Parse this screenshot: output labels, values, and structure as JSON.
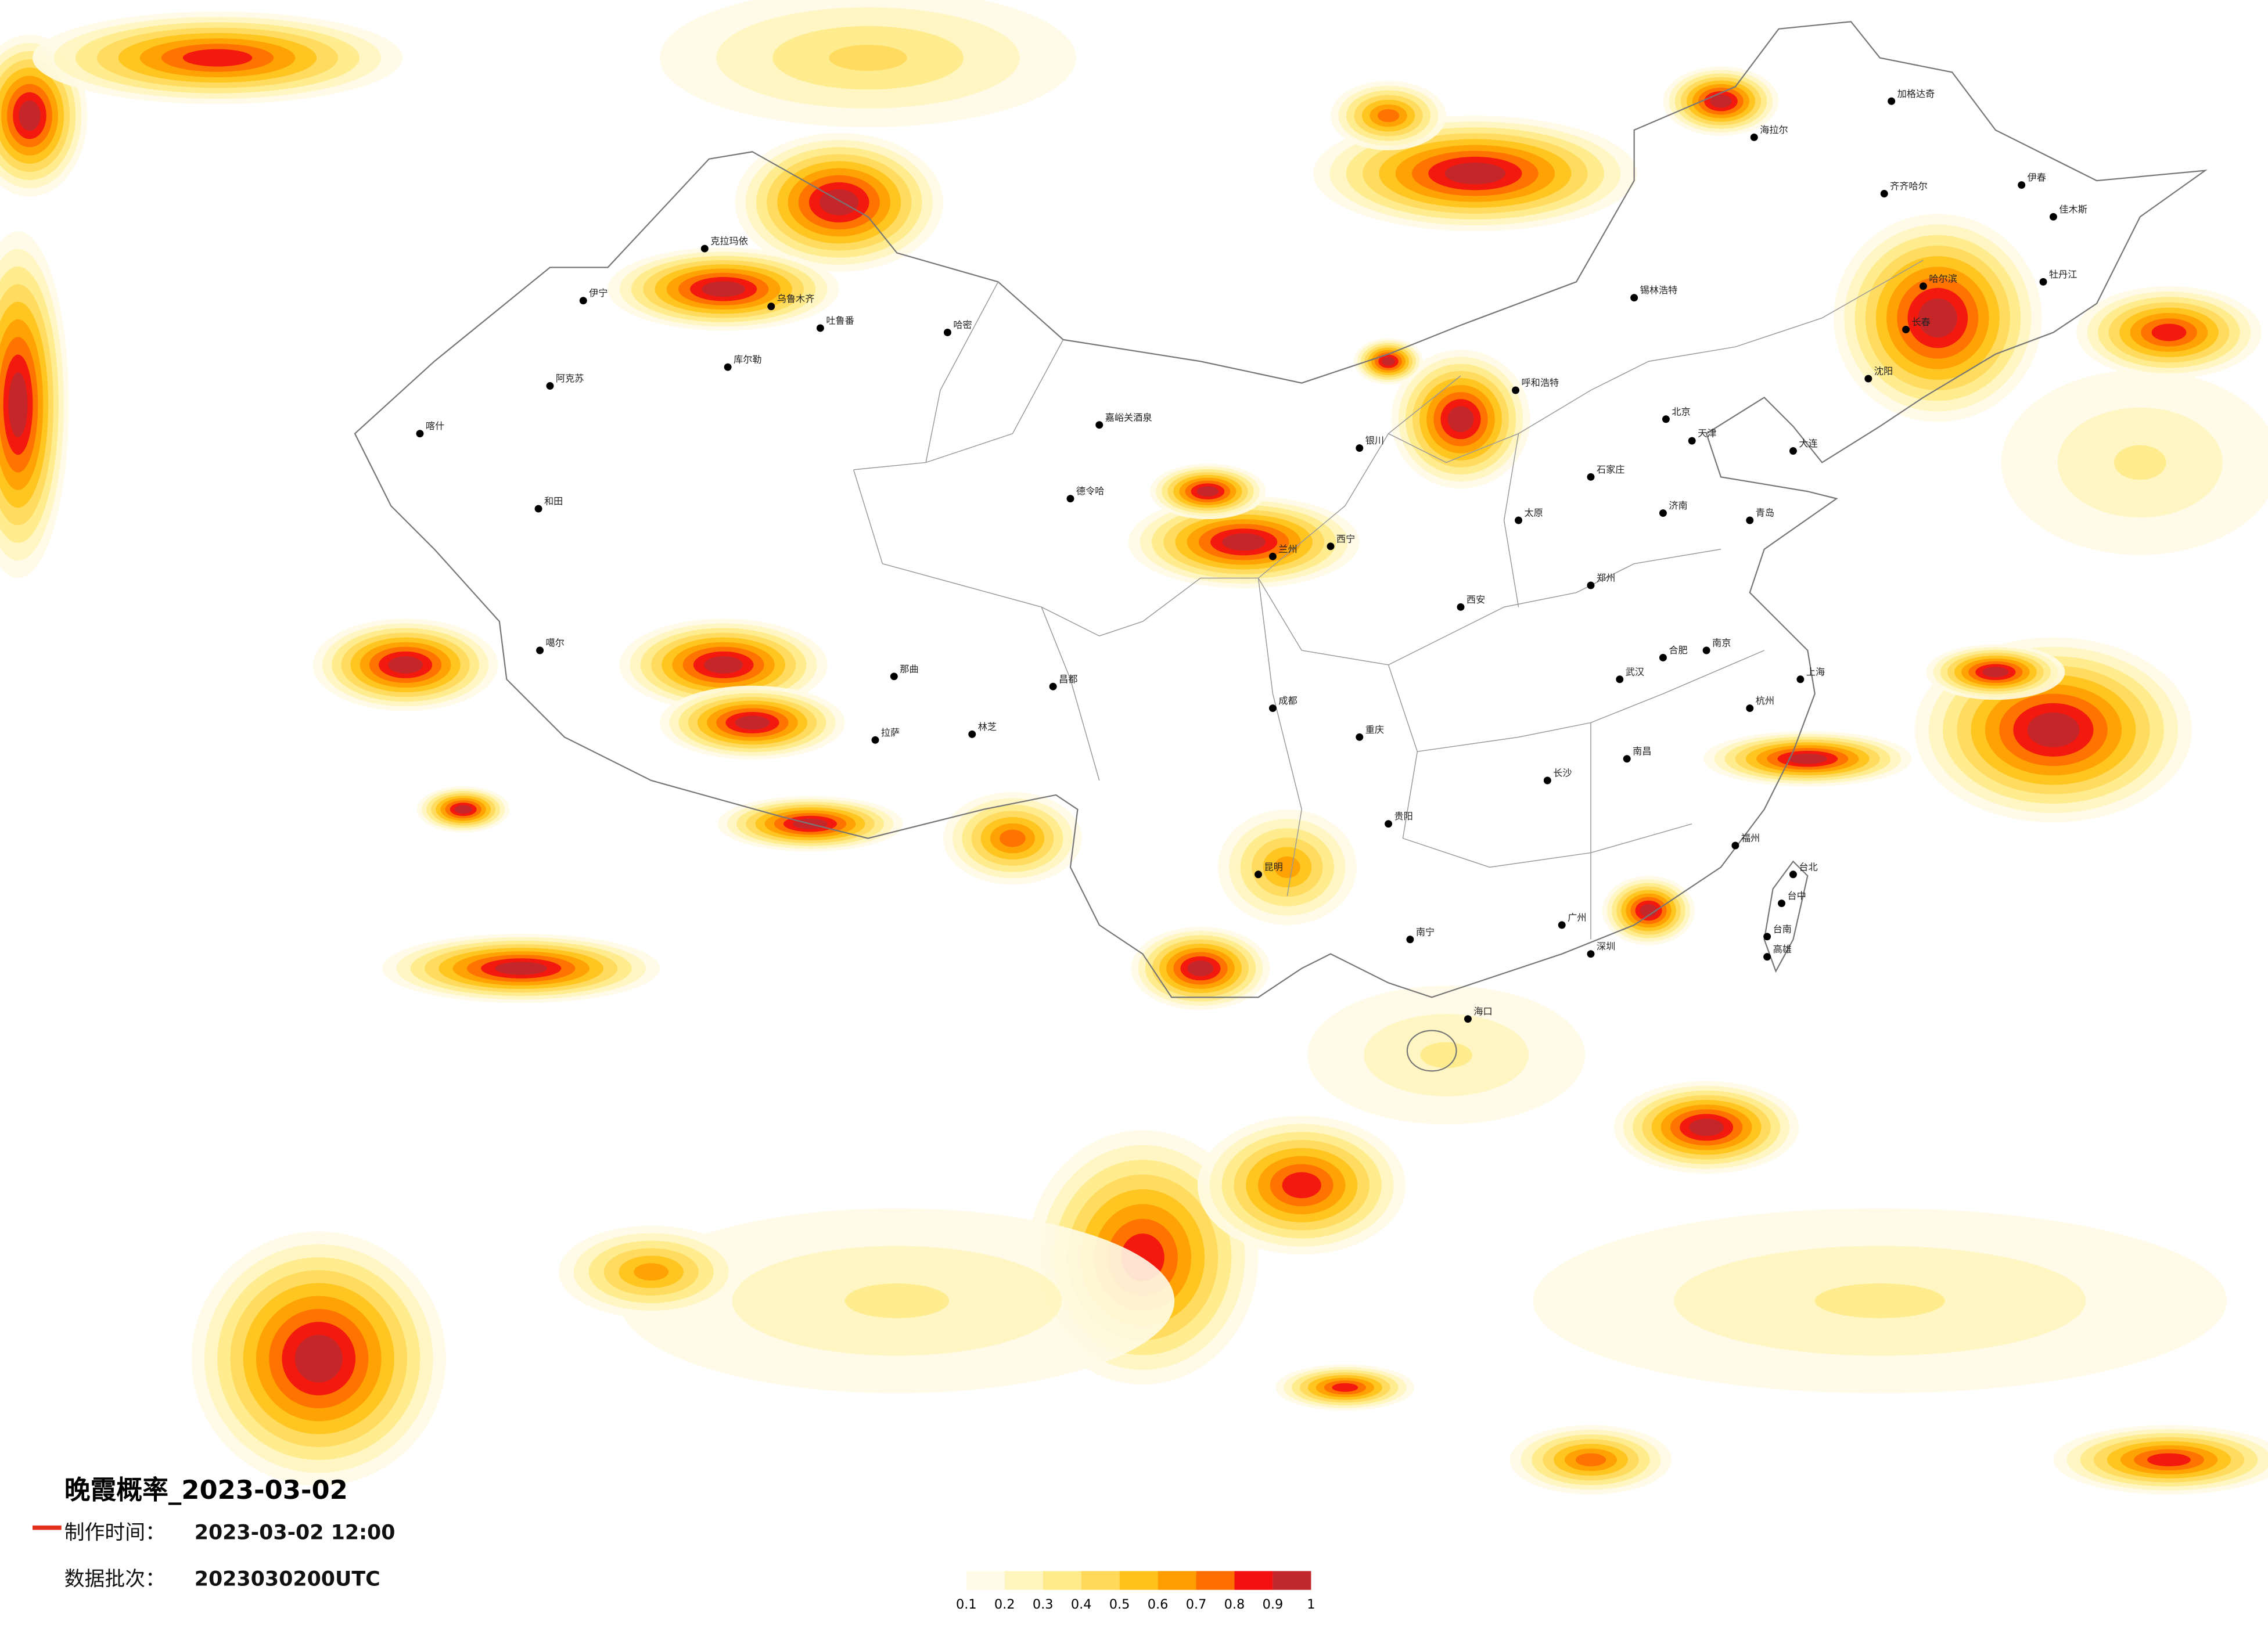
{
  "title": "晚霞概率_2023-03-02",
  "production_time": {
    "label": "制作时间：",
    "value": "2023-03-02 12:00"
  },
  "data_batch": {
    "label": "数据批次：",
    "value": "2023030200UTC"
  },
  "legend": {
    "colors": [
      "#fffbe6",
      "#fff5bf",
      "#ffeb8a",
      "#ffd95a",
      "#ffc21a",
      "#ff9d00",
      "#ff6e00",
      "#f21010",
      "#c0282d"
    ],
    "labels": [
      "0.1",
      "0.2",
      "0.3",
      "0.4",
      "0.5",
      "0.6",
      "0.7",
      "0.8",
      "0.9",
      "1"
    ]
  },
  "cities": [
    "克拉玛依",
    "伊宁",
    "乌鲁木齐",
    "吐鲁番",
    "哈密",
    "阿克苏",
    "喀什",
    "库尔勒",
    "和田",
    "噶尔",
    "德令哈",
    "嘉峪关酒泉",
    "那曲",
    "拉萨",
    "林芝",
    "昌都",
    "海拉尔",
    "加格达奇",
    "齐齐哈尔",
    "哈尔滨",
    "长春",
    "沈阳",
    "大连",
    "伊春",
    "佳木斯",
    "牡丹江",
    "锡林浩特",
    "北京",
    "天津",
    "呼和浩特",
    "石家庄",
    "太原",
    "济南",
    "青岛",
    "郑州",
    "西安",
    "兰州",
    "西宁",
    "银川",
    "成都",
    "重庆",
    "贵阳",
    "昆明",
    "南宁",
    "广州",
    "深圳",
    "长沙",
    "武汉",
    "南昌",
    "福州",
    "杭州",
    "上海",
    "南京",
    "合肥",
    "海口",
    "台北",
    "台中",
    "台南",
    "高雄"
  ]
}
